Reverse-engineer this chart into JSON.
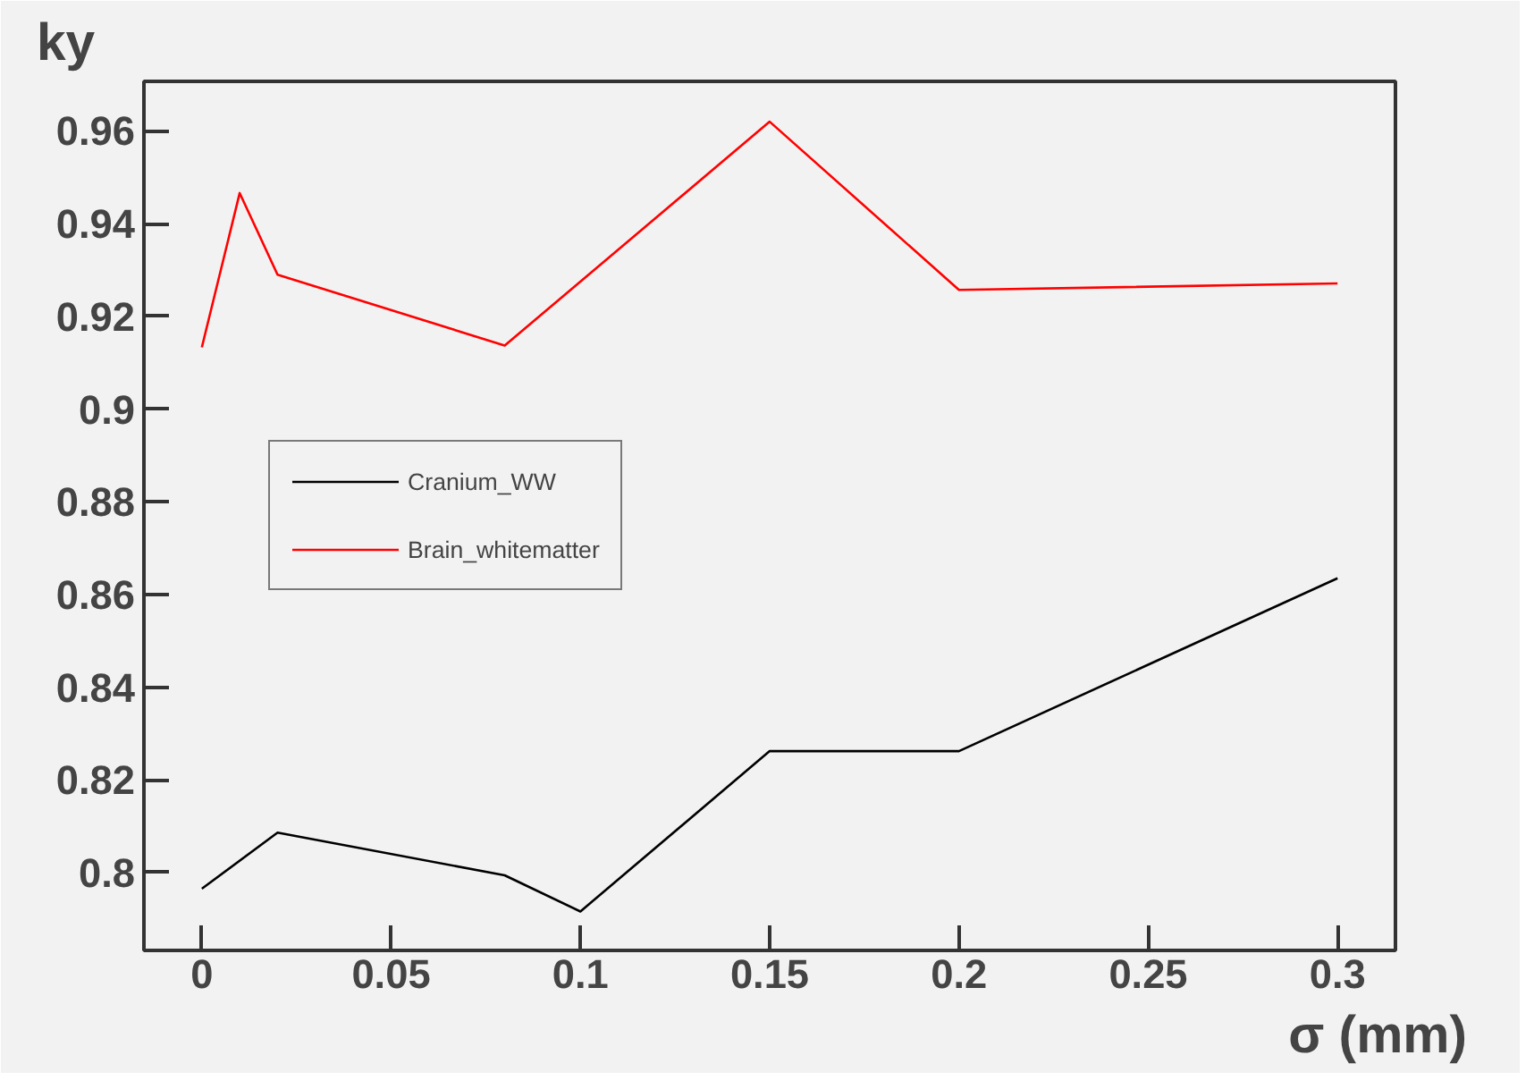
{
  "chart_data": {
    "type": "line",
    "xlabel": "σ (mm)",
    "ylabel": "ky",
    "series": [
      {
        "name": "Cranium_WW",
        "color": "#000000",
        "x": [
          0,
          0.02,
          0.08,
          0.1,
          0.15,
          0.2,
          0.3
        ],
        "values": [
          0.7965,
          0.8086,
          0.7994,
          0.7916,
          0.8262,
          0.8262,
          0.8635
        ]
      },
      {
        "name": "Brain_whitematter",
        "color": "#ff0000",
        "x": [
          0,
          0.01,
          0.02,
          0.08,
          0.15,
          0.2,
          0.3
        ],
        "values": [
          0.9133,
          0.9466,
          0.929,
          0.9137,
          0.962,
          0.9257,
          0.9271
        ]
      }
    ],
    "xlim": [
      -0.0153,
      0.3153
    ],
    "ylim": [
      0.7832,
      0.9707
    ],
    "xticks": [
      0,
      0.05,
      0.1,
      0.15,
      0.2,
      0.25,
      0.3
    ],
    "yticks": [
      0.8,
      0.82,
      0.84,
      0.86,
      0.88,
      0.9,
      0.92,
      0.94,
      0.96
    ],
    "grid": false,
    "legend": "left",
    "marker": "none",
    "line_style": "solid"
  }
}
